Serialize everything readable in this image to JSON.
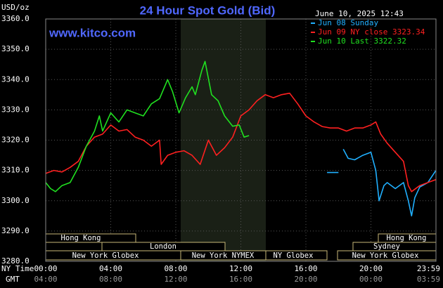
{
  "chart_data": {
    "type": "line",
    "title": "24 Hour Spot Gold (Bid)",
    "subtitle": "www.kitco.com",
    "y_label": "USD/oz",
    "timestamp": "June 10, 2025 12:43",
    "x_label": "NY Time",
    "x2_label": "GMT",
    "xlim": [
      0,
      24
    ],
    "xticks": [
      {
        "value": 0,
        "label": "00:00"
      },
      {
        "value": 4,
        "label": "04:00"
      },
      {
        "value": 8,
        "label": "08:00"
      },
      {
        "value": 12,
        "label": "12:00"
      },
      {
        "value": 16,
        "label": "16:00"
      },
      {
        "value": 20,
        "label": "20:00"
      },
      {
        "value": 23.98,
        "label": "23:59"
      }
    ],
    "x2ticklabels": [
      "04:00",
      "08:00",
      "12:00",
      "16:00",
      "20:00",
      "00:00",
      "03:59"
    ],
    "ylim": [
      3280,
      3360
    ],
    "yticks": [
      {
        "value": 3280,
        "label": "3280.0"
      },
      {
        "value": 3290,
        "label": "3290.0"
      },
      {
        "value": 3300,
        "label": "3300.0"
      },
      {
        "value": 3310,
        "label": "3310.0"
      },
      {
        "value": 3320,
        "label": "3320.0"
      },
      {
        "value": 3330,
        "label": "3330.0"
      },
      {
        "value": 3340,
        "label": "3340.0"
      },
      {
        "value": 3350,
        "label": "3350.0"
      },
      {
        "value": 3360,
        "label": "3360.0"
      }
    ],
    "grid": true,
    "sessions": [
      "Hong Kong",
      "London",
      "New York Globex",
      "New York NYMEX",
      "NY Globex",
      "Hong Kong",
      "Sydney",
      "New York Globex"
    ],
    "series": [
      {
        "name": "Jun 08 Sunday",
        "color": "#20b0ff",
        "x": [
          17.3,
          18.0,
          18.1,
          18.3,
          18.6,
          19,
          19.5,
          20,
          20.3,
          20.5,
          20.8,
          21,
          21.5,
          22,
          22.3,
          22.5,
          22.7,
          23,
          23.5,
          24
        ],
        "values": [
          3309.3,
          3309.3,
          null,
          3317,
          3314,
          3313.5,
          3315,
          3316,
          3310,
          3300,
          3305,
          3306,
          3304,
          3306,
          3300,
          3295,
          3301,
          3304.5,
          3306,
          3310
        ]
      },
      {
        "name": "Jun 09 NY close 3323.34",
        "color": "#ff2020",
        "x": [
          0,
          0.5,
          1,
          1.5,
          2,
          2.5,
          3,
          3.5,
          4,
          4.5,
          5,
          5.5,
          6,
          6.5,
          7,
          7.1,
          7.5,
          8,
          8.5,
          9,
          9.5,
          10,
          10.5,
          11,
          11.5,
          12,
          12.5,
          13,
          13.5,
          14,
          14.5,
          15,
          15.5,
          16,
          16.5,
          17,
          17.5,
          18,
          18.5,
          19,
          19.5,
          20,
          20.3,
          20.6,
          21,
          21.5,
          22,
          22.3,
          22.5,
          23,
          23.5,
          24
        ],
        "values": [
          3309,
          3310,
          3309.5,
          3311,
          3313,
          3318,
          3321,
          3322,
          3325,
          3323,
          3323.5,
          3321,
          3320,
          3318,
          3320,
          3312,
          3315,
          3316,
          3316.5,
          3315,
          3312,
          3320,
          3315,
          3317.5,
          3321,
          3328,
          3330,
          3333,
          3335,
          3334,
          3335,
          3335.5,
          3332,
          3328,
          3326,
          3324.5,
          3324,
          3324,
          3323,
          3324,
          3324,
          3325,
          3326,
          3322,
          3319,
          3316,
          3313,
          3305,
          3303,
          3305,
          3306,
          3307
        ]
      },
      {
        "name": "Jun 10 Last 3322.32",
        "color": "#20e020",
        "x": [
          0,
          0.3,
          0.6,
          1,
          1.5,
          2,
          2.5,
          3,
          3.3,
          3.5,
          4,
          4.5,
          5,
          5.5,
          6,
          6.5,
          7,
          7.5,
          7.8,
          8.2,
          8.6,
          9,
          9.2,
          9.6,
          9.8,
          10.2,
          10.6,
          11,
          11.5,
          11.9,
          12.2,
          12.5
        ],
        "values": [
          3306,
          3304,
          3303,
          3305,
          3306,
          3311,
          3318,
          3323,
          3328,
          3323,
          3329,
          3326,
          3330,
          3329,
          3328,
          3332,
          3333.7,
          3340,
          3336,
          3329,
          3334,
          3337.6,
          3335,
          3343,
          3346,
          3335,
          3333,
          3328,
          3324.6,
          3325,
          3321,
          3321.5
        ]
      }
    ]
  }
}
